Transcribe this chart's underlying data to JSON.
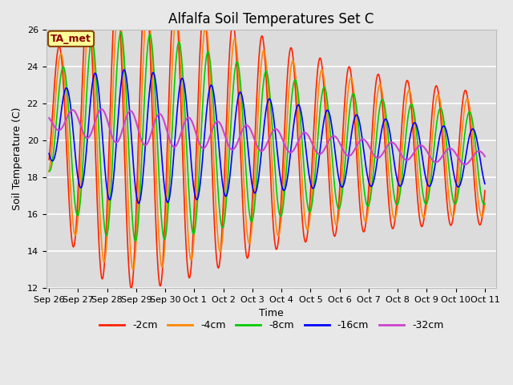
{
  "title": "Alfalfa Soil Temperatures Set C",
  "xlabel": "Time",
  "ylabel": "Soil Temperature (C)",
  "ylim": [
    12,
    26
  ],
  "xtick_labels": [
    "Sep 26",
    "Sep 27",
    "Sep 28",
    "Sep 29",
    "Sep 30",
    "Oct 1",
    "Oct 2",
    "Oct 3",
    "Oct 4",
    "Oct 5",
    "Oct 6",
    "Oct 7",
    "Oct 8",
    "Oct 9",
    "Oct 10",
    "Oct 11"
  ],
  "line_colors": [
    "#ff2200",
    "#ff8800",
    "#00cc00",
    "#0000ff",
    "#cc44cc"
  ],
  "line_labels": [
    "-2cm",
    "-4cm",
    "-8cm",
    "-16cm",
    "-32cm"
  ],
  "annotation_text": "TA_met",
  "annotation_bg": "#ffff99",
  "annotation_border": "#884400",
  "fig_bg": "#e8e8e8",
  "plot_bg": "#dcdcdc",
  "grid_color": "#ffffff",
  "title_fontsize": 12,
  "axis_fontsize": 9,
  "tick_fontsize": 8,
  "legend_fontsize": 9
}
